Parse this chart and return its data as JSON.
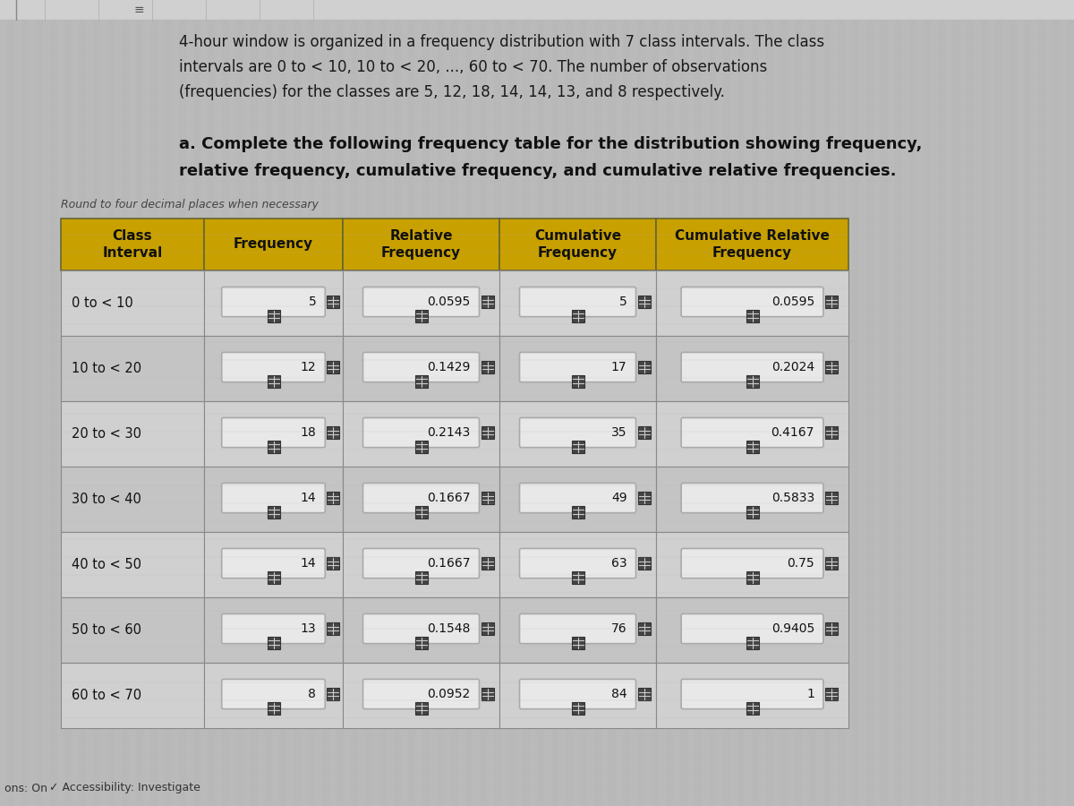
{
  "bg_color": "#b8b8b8",
  "stripe_color": "#c8c8c8",
  "header_text_lines": [
    "4-hour window is organized in a frequency distribution with 7 class intervals. The class",
    "intervals are 0 to < 10, 10 to < 20, ..., 60 to < 70. The number of observations",
    "(frequencies) for the classes are 5, 12, 18, 14, 14, 13, and 8 respectively."
  ],
  "instruction_lines": [
    "a. Complete the following frequency table for the distribution showing frequency,",
    "relative frequency, cumulative frequency, and cumulative relative frequencies."
  ],
  "round_note": "Round to four decimal places when necessary",
  "col_headers": [
    "Class\nInterval",
    "Frequency",
    "Relative\nFrequency",
    "Cumulative\nFrequency",
    "Cumulative Relative\nFrequency"
  ],
  "header_bg": "#c8a000",
  "header_text_color": "#111111",
  "row_bg_even": "#d0d0d0",
  "row_bg_odd": "#c4c4c4",
  "input_box_bg": "#e8e8e8",
  "input_box_border": "#999999",
  "class_intervals": [
    "0 to < 10",
    "10 to < 20",
    "20 to < 30",
    "30 to < 40",
    "40 to < 50",
    "50 to < 60",
    "60 to < 70"
  ],
  "frequencies": [
    "5",
    "12",
    "18",
    "14",
    "14",
    "13",
    "8"
  ],
  "relative_frequencies": [
    "0.0595",
    "0.1429",
    "0.2143",
    "0.1667",
    "0.1667",
    "0.1548",
    "0.0952"
  ],
  "cumulative_frequencies": [
    "5",
    "17",
    "35",
    "49",
    "63",
    "76",
    "84"
  ],
  "cumulative_relative_frequencies": [
    "0.0595",
    "0.2024",
    "0.4167",
    "0.5833",
    "0.75",
    "0.9405",
    "1"
  ],
  "footer_left": "ons: On",
  "footer_right": "✓ Accessibility: Investigate",
  "toolbar_bg": "#d8d8d8"
}
